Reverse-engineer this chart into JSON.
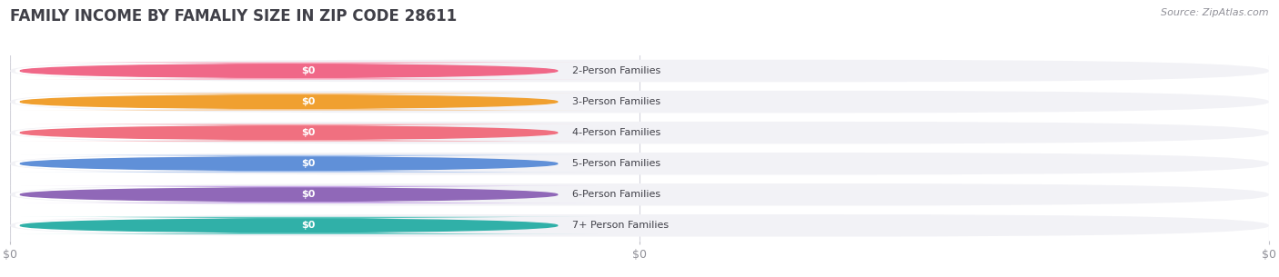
{
  "title": "FAMILY INCOME BY FAMALIY SIZE IN ZIP CODE 28611",
  "source": "Source: ZipAtlas.com",
  "categories": [
    "2-Person Families",
    "3-Person Families",
    "4-Person Families",
    "5-Person Families",
    "6-Person Families",
    "7+ Person Families"
  ],
  "values": [
    0,
    0,
    0,
    0,
    0,
    0
  ],
  "bar_colors": [
    "#f8a8be",
    "#f8c890",
    "#f8a8b0",
    "#a8c4f0",
    "#c8a8e8",
    "#60c8c0"
  ],
  "dot_colors": [
    "#f06888",
    "#f0a030",
    "#f07080",
    "#6090d8",
    "#9068b8",
    "#30b0a8"
  ],
  "bar_bg_color": "#f2f2f6",
  "background_color": "#ffffff",
  "title_fontsize": 12,
  "source_fontsize": 8,
  "tick_fontsize": 9,
  "label_fontsize": 8,
  "value_fontsize": 8,
  "figsize": [
    14.06,
    3.05
  ],
  "dpi": 100,
  "xtick_positions": [
    0,
    0.5,
    1.0
  ],
  "xtick_labels": [
    "$0",
    "$0",
    "$0"
  ]
}
